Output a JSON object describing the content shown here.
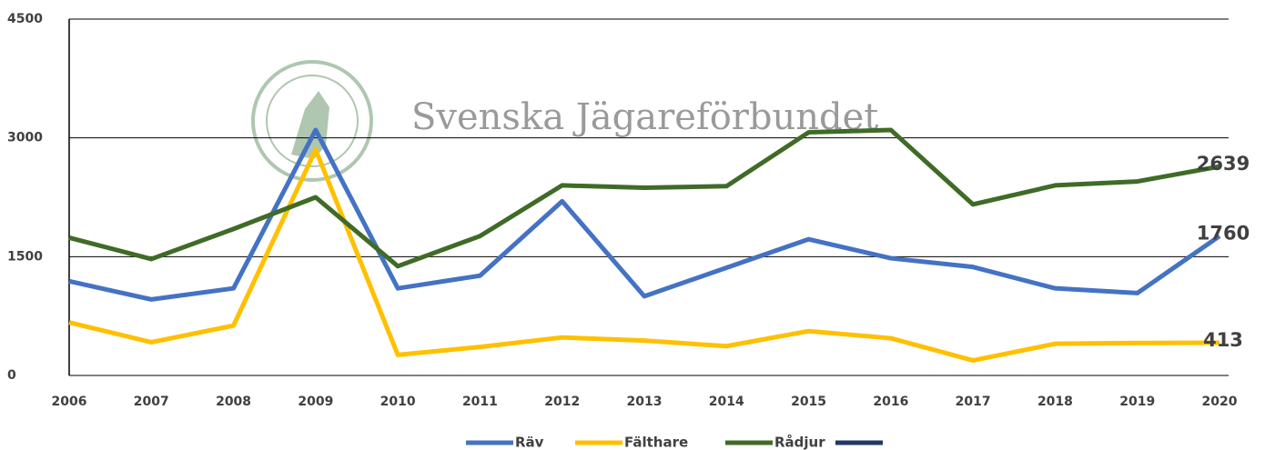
{
  "chart_data": {
    "type": "line",
    "watermark": "Svenska Jägareförbundet",
    "categories": [
      "2006",
      "2007",
      "2008",
      "2009",
      "2010",
      "2011",
      "2012",
      "2013",
      "2014",
      "2015",
      "2016",
      "2017",
      "2018",
      "2019",
      "2020"
    ],
    "series": [
      {
        "name": "Räv",
        "color": "#4472c4",
        "values": [
          1190,
          960,
          1100,
          3100,
          1100,
          1260,
          2200,
          1000,
          1360,
          1720,
          1480,
          1370,
          1100,
          1040,
          1760
        ]
      },
      {
        "name": "Fälthare",
        "color": "#ffc000",
        "values": [
          670,
          420,
          630,
          2850,
          260,
          360,
          480,
          440,
          370,
          560,
          470,
          190,
          400,
          410,
          413
        ]
      },
      {
        "name": "Rådjur",
        "color": "#3f6b27",
        "values": [
          1740,
          1470,
          1850,
          2250,
          1380,
          1760,
          2400,
          2370,
          2390,
          3070,
          3100,
          2160,
          2400,
          2450,
          2639
        ]
      }
    ],
    "ylim": [
      0,
      4500
    ],
    "yticks": [
      0,
      1500,
      3000,
      4500
    ],
    "grid": true
  }
}
